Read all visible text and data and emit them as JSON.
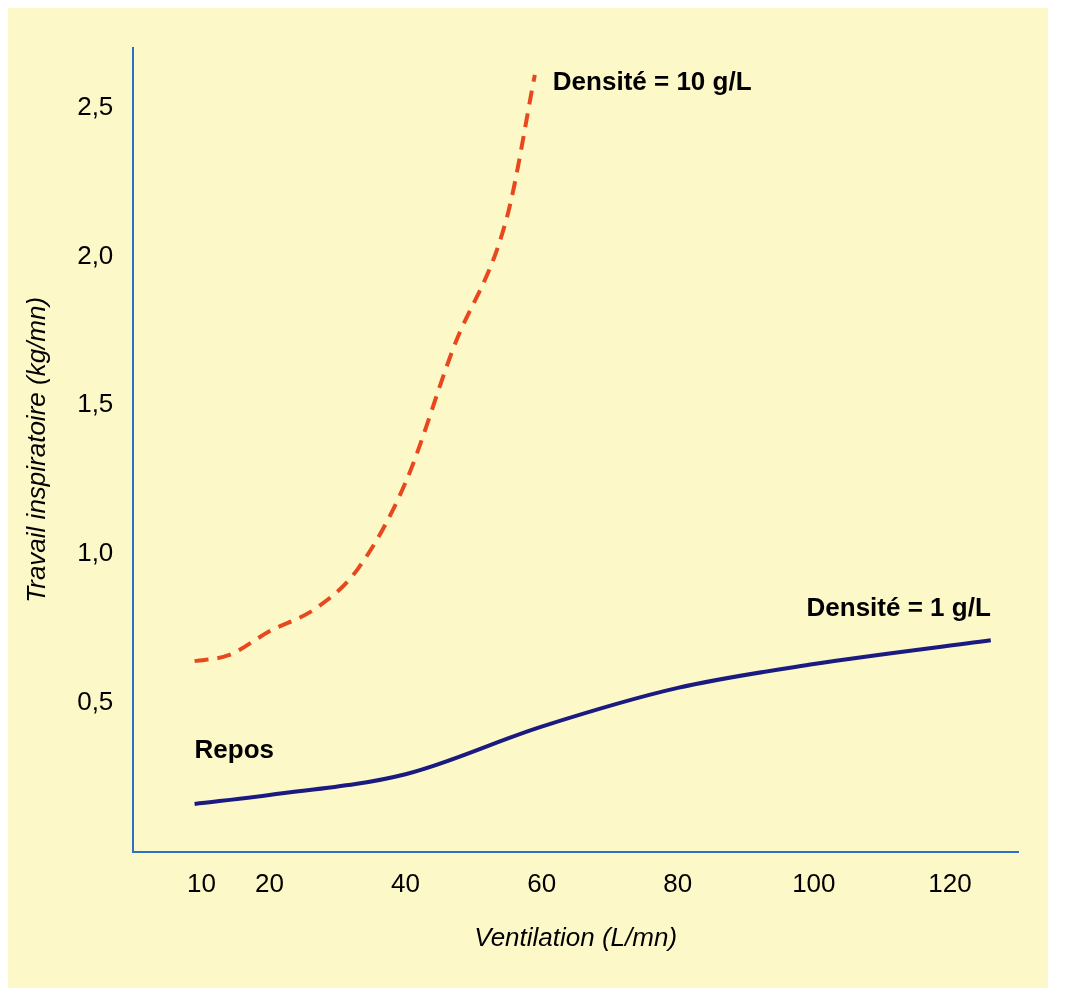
{
  "chart_data": {
    "type": "line",
    "xlabel": "Ventilation (L/mn)",
    "ylabel": "Travail inspiratoire (kg/mn)",
    "xlim": [
      0,
      130
    ],
    "xticks": [
      10,
      20,
      40,
      60,
      80,
      100,
      120
    ],
    "ylim": [
      0,
      2.7
    ],
    "yticks": [
      {
        "value": 0.5,
        "label": "0,5"
      },
      {
        "value": 1,
        "label": "1,0"
      },
      {
        "value": 1.5,
        "label": "1,5"
      },
      {
        "value": 2,
        "label": "2,0"
      },
      {
        "value": 2.5,
        "label": "2,5"
      }
    ],
    "grid": false,
    "legend": false,
    "marker": "none",
    "series": [
      {
        "name": "Densité = 10 g/L",
        "color": "#e8481e",
        "line_style": "dashed",
        "x": [
          9,
          14,
          20,
          27,
          33,
          40,
          47,
          55,
          59
        ],
        "values": [
          0.64,
          0.66,
          0.74,
          0.82,
          0.95,
          1.24,
          1.69,
          2.14,
          2.61
        ]
      },
      {
        "name": "Densité = 1 g/L",
        "color": "#1a1a80",
        "line_style": "solid",
        "x": [
          9,
          20,
          40,
          60,
          80,
          100,
          126
        ],
        "values": [
          0.16,
          0.19,
          0.26,
          0.42,
          0.55,
          0.63,
          0.71
        ]
      }
    ],
    "annotations": [
      {
        "text": "Repos",
        "x": 9,
        "y": 0.16
      }
    ]
  }
}
